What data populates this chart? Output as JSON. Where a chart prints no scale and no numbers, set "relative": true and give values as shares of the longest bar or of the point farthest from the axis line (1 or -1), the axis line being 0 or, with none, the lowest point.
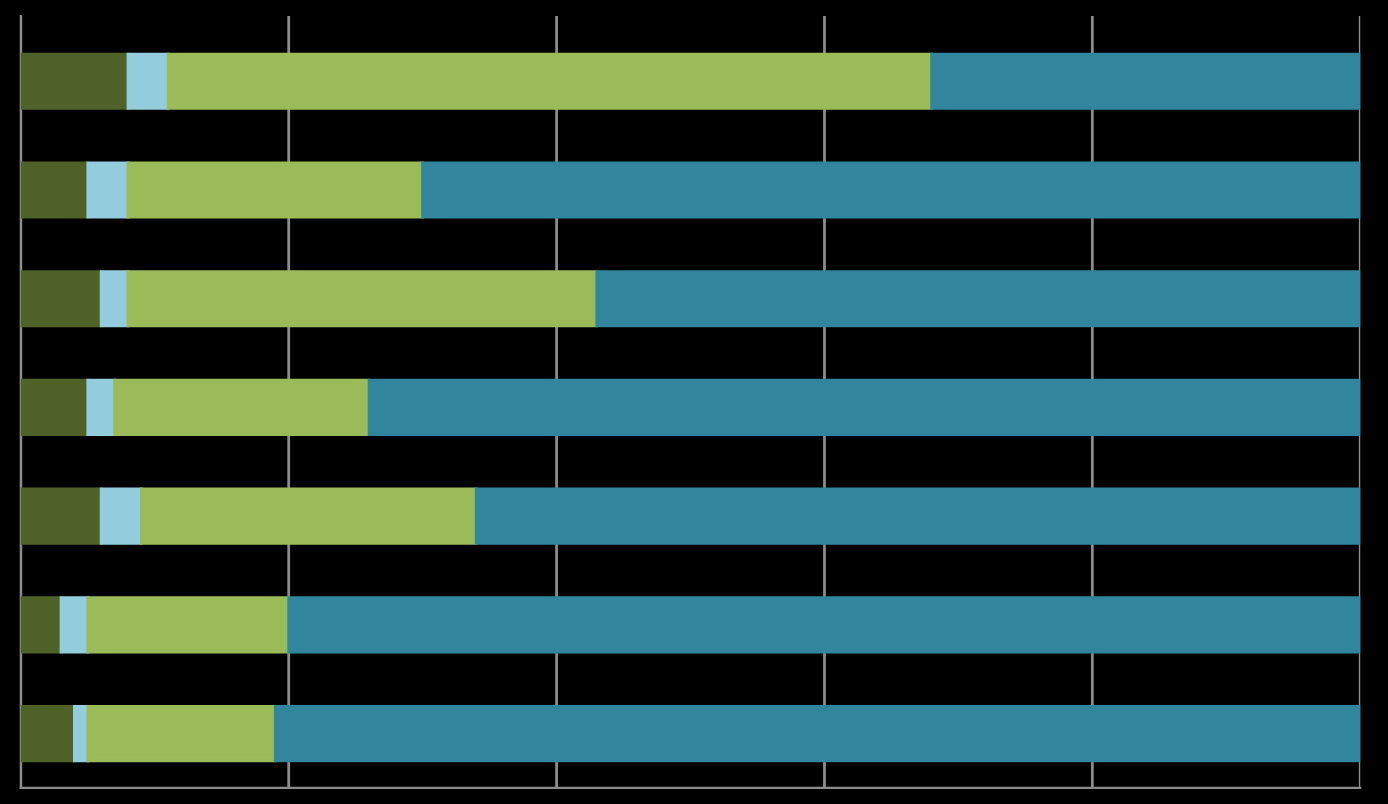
{
  "chart_data": {
    "type": "bar",
    "orientation": "horizontal",
    "stacked": true,
    "relative": true,
    "grid": "x",
    "legend": false,
    "categories": [
      null,
      null,
      null,
      null,
      null,
      null,
      null
    ],
    "series": [
      {
        "color": "#4f6228",
        "values": [
          0.08,
          0.05,
          0.06,
          0.05,
          0.06,
          0.03,
          0.04
        ]
      },
      {
        "color": "#93cddd",
        "values": [
          0.03,
          0.03,
          0.02,
          0.02,
          0.03,
          0.02,
          0.01
        ]
      },
      {
        "color": "#9bbb59",
        "values": [
          0.57,
          0.22,
          0.35,
          0.19,
          0.25,
          0.15,
          0.14
        ]
      },
      {
        "color": "#31859c",
        "values": [
          0.32,
          0.7,
          0.57,
          0.74,
          0.66,
          0.8,
          0.81
        ]
      }
    ]
  }
}
